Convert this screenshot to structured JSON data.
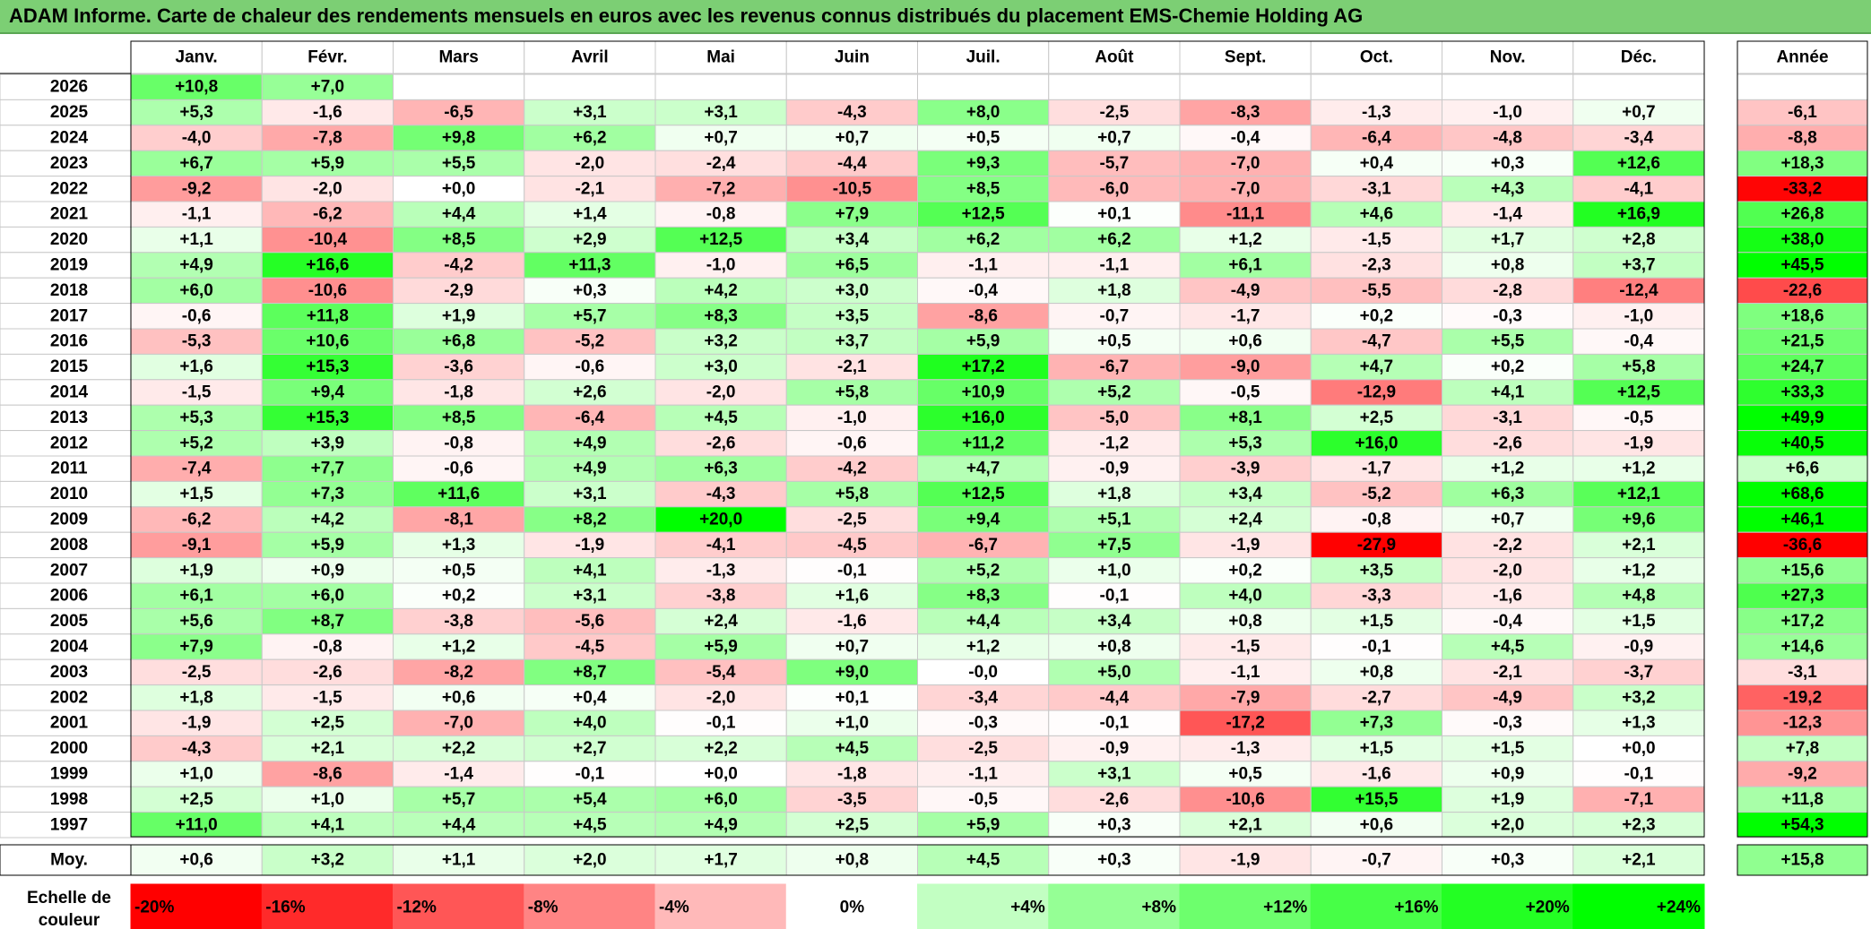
{
  "title": "ADAM Informe. Carte de chaleur des rendements mensuels en euros avec les revenus connus distribués du placement EMS-Chemie Holding AG",
  "chart_data": {
    "type": "heatmap",
    "months": [
      "Janv.",
      "Févr.",
      "Mars",
      "Avril",
      "Mai",
      "Juin",
      "Juil.",
      "Août",
      "Sept.",
      "Oct.",
      "Nov.",
      "Déc."
    ],
    "year_header": "Année",
    "rows": [
      {
        "year": "2026",
        "values": [
          10.8,
          7.0,
          null,
          null,
          null,
          null,
          null,
          null,
          null,
          null,
          null,
          null
        ],
        "annual": null
      },
      {
        "year": "2025",
        "values": [
          5.3,
          -1.6,
          -6.5,
          3.1,
          3.1,
          -4.3,
          8.0,
          -2.5,
          -8.3,
          -1.3,
          -1.0,
          0.7
        ],
        "annual": -6.1
      },
      {
        "year": "2024",
        "values": [
          -4.0,
          -7.8,
          9.8,
          6.2,
          0.7,
          0.7,
          0.5,
          0.7,
          -0.4,
          -6.4,
          -4.8,
          -3.4
        ],
        "annual": -8.8
      },
      {
        "year": "2023",
        "values": [
          6.7,
          5.9,
          5.5,
          -2.0,
          -2.4,
          -4.4,
          9.3,
          -5.7,
          -7.0,
          0.4,
          0.3,
          12.6
        ],
        "annual": 18.3
      },
      {
        "year": "2022",
        "values": [
          -9.2,
          -2.0,
          0.0,
          -2.1,
          -7.2,
          -10.5,
          8.5,
          -6.0,
          -7.0,
          -3.1,
          4.3,
          -4.1
        ],
        "annual": -33.2
      },
      {
        "year": "2021",
        "values": [
          -1.1,
          -6.2,
          4.4,
          1.4,
          -0.8,
          7.9,
          12.5,
          0.1,
          -11.1,
          4.6,
          -1.4,
          16.9
        ],
        "annual": 26.8
      },
      {
        "year": "2020",
        "values": [
          1.1,
          -10.4,
          8.5,
          2.9,
          12.5,
          3.4,
          6.2,
          6.2,
          1.2,
          -1.5,
          1.7,
          2.8
        ],
        "annual": 38.0
      },
      {
        "year": "2019",
        "values": [
          4.9,
          16.6,
          -4.2,
          11.3,
          -1.0,
          6.5,
          -1.1,
          -1.1,
          6.1,
          -2.3,
          0.8,
          3.7
        ],
        "annual": 45.5
      },
      {
        "year": "2018",
        "values": [
          6.0,
          -10.6,
          -2.9,
          0.3,
          4.2,
          3.0,
          -0.4,
          1.8,
          -4.9,
          -5.5,
          -2.8,
          -12.4
        ],
        "annual": -22.6
      },
      {
        "year": "2017",
        "values": [
          -0.6,
          11.8,
          1.9,
          5.7,
          8.3,
          3.5,
          -8.6,
          -0.7,
          -1.7,
          0.2,
          -0.3,
          -1.0
        ],
        "annual": 18.6
      },
      {
        "year": "2016",
        "values": [
          -5.3,
          10.6,
          6.8,
          -5.2,
          3.2,
          3.7,
          5.9,
          0.5,
          0.6,
          -4.7,
          5.5,
          -0.4
        ],
        "annual": 21.5
      },
      {
        "year": "2015",
        "values": [
          1.6,
          15.3,
          -3.6,
          -0.6,
          3.0,
          -2.1,
          17.2,
          -6.7,
          -9.0,
          4.7,
          0.2,
          5.8
        ],
        "annual": 24.7
      },
      {
        "year": "2014",
        "values": [
          -1.5,
          9.4,
          -1.8,
          2.6,
          -2.0,
          5.8,
          10.9,
          5.2,
          -0.5,
          -12.9,
          4.1,
          12.5
        ],
        "annual": 33.3
      },
      {
        "year": "2013",
        "values": [
          5.3,
          15.3,
          8.5,
          -6.4,
          4.5,
          -1.0,
          16.0,
          -5.0,
          8.1,
          2.5,
          -3.1,
          -0.5
        ],
        "annual": 49.9
      },
      {
        "year": "2012",
        "values": [
          5.2,
          3.9,
          -0.8,
          4.9,
          -2.6,
          -0.6,
          11.2,
          -1.2,
          5.3,
          16.0,
          -2.6,
          -1.9
        ],
        "annual": 40.5
      },
      {
        "year": "2011",
        "values": [
          -7.4,
          7.7,
          -0.6,
          4.9,
          6.3,
          -4.2,
          4.7,
          -0.9,
          -3.9,
          -1.7,
          1.2,
          1.2
        ],
        "annual": 6.6
      },
      {
        "year": "2010",
        "values": [
          1.5,
          7.3,
          11.6,
          3.1,
          -4.3,
          5.8,
          12.5,
          1.8,
          3.4,
          -5.2,
          6.3,
          12.1
        ],
        "annual": 68.6
      },
      {
        "year": "2009",
        "values": [
          -6.2,
          4.2,
          -8.1,
          8.2,
          20.0,
          -2.5,
          9.4,
          5.1,
          2.4,
          -0.8,
          0.7,
          9.6
        ],
        "annual": 46.1
      },
      {
        "year": "2008",
        "values": [
          -9.1,
          5.9,
          1.3,
          -1.9,
          -4.1,
          -4.5,
          -6.7,
          7.5,
          -1.9,
          -27.9,
          -2.2,
          2.1
        ],
        "annual": -36.6
      },
      {
        "year": "2007",
        "values": [
          1.9,
          0.9,
          0.5,
          4.1,
          -1.3,
          -0.1,
          5.2,
          1.0,
          0.2,
          3.5,
          -2.0,
          1.2
        ],
        "annual": 15.6
      },
      {
        "year": "2006",
        "values": [
          6.1,
          6.0,
          0.2,
          3.1,
          -3.8,
          1.6,
          8.3,
          -0.1,
          4.0,
          -3.3,
          -1.6,
          4.8
        ],
        "annual": 27.3
      },
      {
        "year": "2005",
        "values": [
          5.6,
          8.7,
          -3.8,
          -5.6,
          2.4,
          -1.6,
          4.4,
          3.4,
          0.8,
          1.5,
          -0.4,
          1.5
        ],
        "annual": 17.2
      },
      {
        "year": "2004",
        "values": [
          7.9,
          -0.8,
          1.2,
          -4.5,
          5.9,
          0.7,
          1.2,
          0.8,
          -1.5,
          -0.1,
          4.5,
          -0.9
        ],
        "annual": 14.6
      },
      {
        "year": "2003",
        "values": [
          -2.5,
          -2.6,
          -8.2,
          8.7,
          -5.4,
          9.0,
          -0.0,
          5.0,
          -1.1,
          0.8,
          -2.1,
          -3.7
        ],
        "annual": -3.1
      },
      {
        "year": "2002",
        "values": [
          1.8,
          -1.5,
          0.6,
          0.4,
          -2.0,
          0.1,
          -3.4,
          -4.4,
          -7.9,
          -2.7,
          -4.9,
          3.2
        ],
        "annual": -19.2
      },
      {
        "year": "2001",
        "values": [
          -1.9,
          2.5,
          -7.0,
          4.0,
          -0.1,
          1.0,
          -0.3,
          -0.1,
          -17.2,
          7.3,
          -0.3,
          1.3
        ],
        "annual": -12.3
      },
      {
        "year": "2000",
        "values": [
          -4.3,
          2.1,
          2.2,
          2.7,
          2.2,
          4.5,
          -2.5,
          -0.9,
          -1.3,
          1.5,
          1.5,
          0.0
        ],
        "annual": 7.8
      },
      {
        "year": "1999",
        "values": [
          1.0,
          -8.6,
          -1.4,
          -0.1,
          0.0,
          -1.8,
          -1.1,
          3.1,
          0.5,
          -1.6,
          0.9,
          -0.1
        ],
        "annual": -9.2
      },
      {
        "year": "1998",
        "values": [
          2.5,
          1.0,
          5.7,
          5.4,
          6.0,
          -3.5,
          -0.5,
          -2.6,
          -10.6,
          15.5,
          1.9,
          -7.1
        ],
        "annual": 11.8
      },
      {
        "year": "1997",
        "values": [
          11.0,
          4.1,
          4.4,
          4.5,
          4.9,
          2.5,
          5.9,
          0.3,
          2.1,
          0.6,
          2.0,
          2.3
        ],
        "annual": 54.3
      }
    ],
    "average": {
      "label": "Moy.",
      "values": [
        0.6,
        3.2,
        1.1,
        2.0,
        1.7,
        0.8,
        4.5,
        0.3,
        -1.9,
        -0.7,
        0.3,
        2.1
      ],
      "annual": 15.8
    },
    "scale": {
      "label_line1": "Echelle de",
      "label_line2": "couleur",
      "steps": [
        -20,
        -16,
        -12,
        -8,
        -4,
        0,
        4,
        8,
        12,
        16,
        20,
        24
      ],
      "labels": [
        "-20%",
        "-16%",
        "-12%",
        "-8%",
        "-4%",
        "0%",
        "+4%",
        "+8%",
        "+12%",
        "+16%",
        "+20%",
        "+24%"
      ]
    },
    "colors": {
      "negative_max": "#ff0000",
      "neutral": "#ffffff",
      "positive_max": "#00ff00",
      "title_bar": "#7ccf74"
    }
  }
}
